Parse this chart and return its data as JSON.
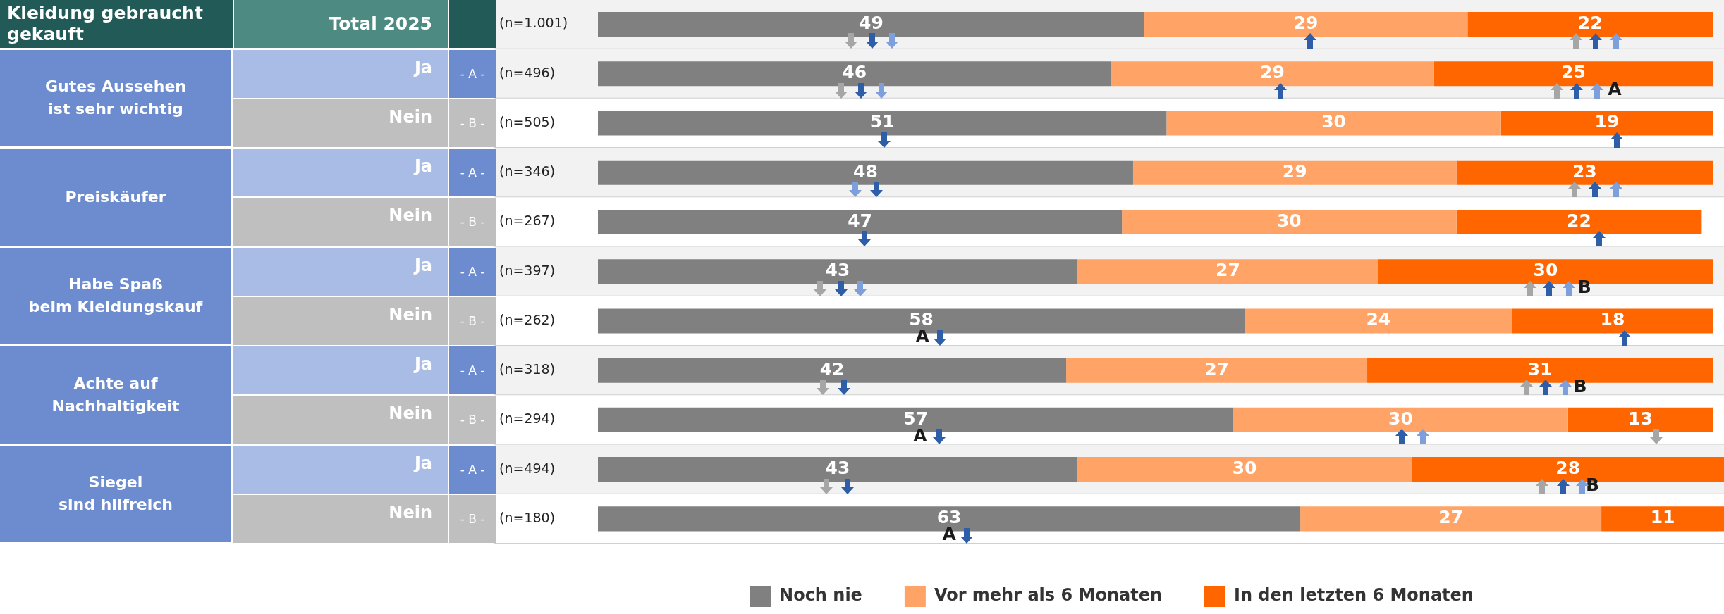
{
  "chart_data": {
    "type": "bar",
    "orientation": "horizontal",
    "stacked": true,
    "data_labels": true,
    "legend": "bottom",
    "title": "Kleidung gebraucht gekauft",
    "categories": [
      "(n=1.001)",
      "(n=496)",
      "(n=505)",
      "(n=346)",
      "(n=267)",
      "(n=397)",
      "(n=262)",
      "(n=318)",
      "(n=294)",
      "(n=494)",
      "(n=180)"
    ],
    "series": [
      {
        "name": "Noch nie",
        "color": "#808080",
        "values": [
          49,
          46,
          51,
          48,
          47,
          43,
          58,
          42,
          57,
          43,
          63
        ]
      },
      {
        "name": "Vor mehr als 6 Monaten",
        "color": "#ffa466",
        "values": [
          29,
          29,
          30,
          29,
          30,
          27,
          24,
          27,
          30,
          30,
          27
        ]
      },
      {
        "name": "In den letzten 6 Monaten",
        "color": "#ff6600",
        "values": [
          22,
          25,
          19,
          23,
          22,
          30,
          18,
          31,
          13,
          28,
          11
        ]
      }
    ],
    "annotations": [
      "Total 2025",
      "Gutes Aussehen\nist sehr wichtig",
      "Ja",
      "- A -",
      "Nein",
      "- B -",
      "Preiskäufer",
      "Ja",
      "- A -",
      "Nein",
      "- B -",
      "Habe Spaß\nbeim Kleidungskauf",
      "Ja",
      "- A -",
      "Nein",
      "- B -",
      "Achte auf\nNachhaltigkeit",
      "Ja",
      "- A -",
      "Nein",
      "- B -",
      "Siegel\nsind hilfreich",
      "Ja",
      "- A -",
      "Nein",
      "- B -",
      "A",
      "B",
      "A",
      "B",
      "A",
      "B",
      "A"
    ]
  }
}
